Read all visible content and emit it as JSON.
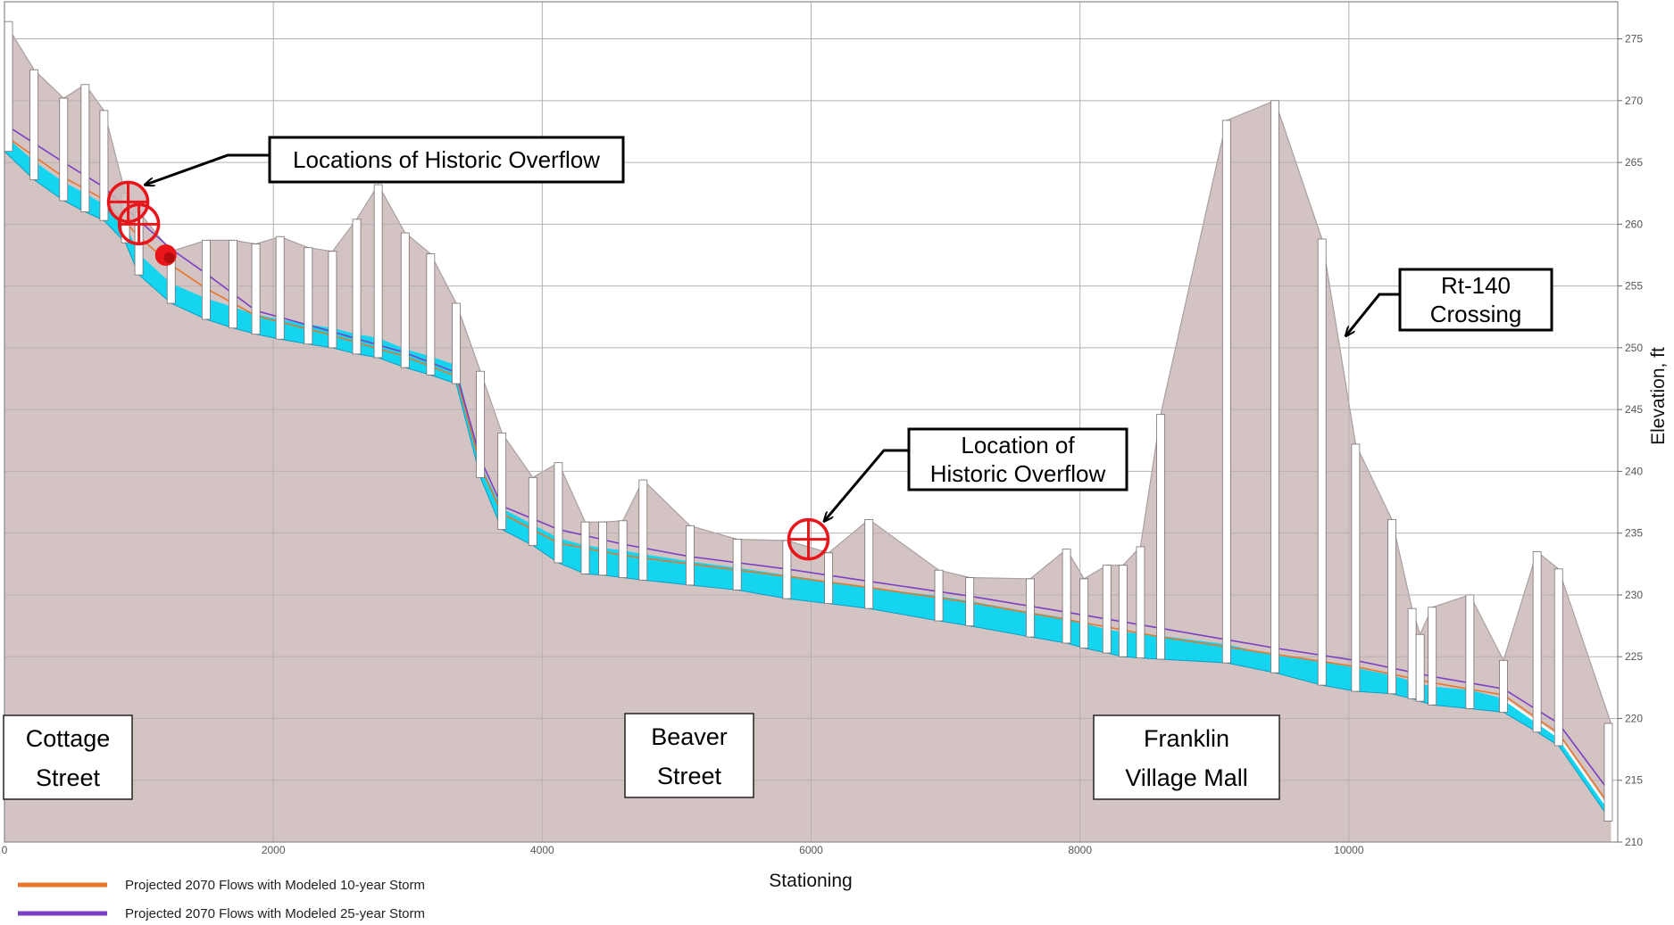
{
  "chart_data": {
    "type": "area",
    "xlabel": "Stationing",
    "ylabel": "Elevation, ft",
    "xlim": [
      0,
      12000
    ],
    "ylim": [
      210,
      278
    ],
    "xticks": [
      0,
      2000,
      4000,
      6000,
      8000,
      10000
    ],
    "yticks": [
      210,
      215,
      220,
      225,
      230,
      235,
      240,
      245,
      250,
      255,
      260,
      265,
      270,
      275
    ],
    "grid": true,
    "colors": {
      "ground": "#d4c3c3",
      "ground_edge": "#a8a0a0",
      "pipe_fill": "#14d4ef",
      "manhole": "#ffffff",
      "flow_10yr": "#e8762b",
      "flow_25yr": "#7b3fc4",
      "overflow_marker": "#e8161b"
    },
    "ground_surface": [
      [
        0,
        276.4
      ],
      [
        220,
        272.5
      ],
      [
        440,
        270.2
      ],
      [
        600,
        271.3
      ],
      [
        740,
        269.2
      ],
      [
        900,
        262.5
      ],
      [
        1000,
        261.0
      ],
      [
        1240,
        257.8
      ],
      [
        1500,
        258.7
      ],
      [
        1700,
        258.7
      ],
      [
        1870,
        258.4
      ],
      [
        2050,
        259.0
      ],
      [
        2260,
        258.1
      ],
      [
        2440,
        257.8
      ],
      [
        2620,
        260.4
      ],
      [
        2780,
        263.2
      ],
      [
        2980,
        259.3
      ],
      [
        3170,
        257.6
      ],
      [
        3360,
        253.6
      ],
      [
        3540,
        248.1
      ],
      [
        3700,
        243.1
      ],
      [
        3930,
        239.5
      ],
      [
        4120,
        240.7
      ],
      [
        4320,
        235.9
      ],
      [
        4450,
        235.9
      ],
      [
        4600,
        236.0
      ],
      [
        4750,
        239.3
      ],
      [
        5100,
        235.6
      ],
      [
        5450,
        234.5
      ],
      [
        5820,
        234.4
      ],
      [
        6130,
        233.4
      ],
      [
        6430,
        236.1
      ],
      [
        6950,
        232.0
      ],
      [
        7180,
        231.4
      ],
      [
        7630,
        231.3
      ],
      [
        7900,
        233.7
      ],
      [
        8030,
        231.3
      ],
      [
        8200,
        232.4
      ],
      [
        8320,
        232.4
      ],
      [
        8450,
        233.9
      ],
      [
        8600,
        244.6
      ],
      [
        9090,
        268.4
      ],
      [
        9450,
        270.0
      ],
      [
        9800,
        258.8
      ],
      [
        10050,
        242.2
      ],
      [
        10320,
        236.1
      ],
      [
        10470,
        228.9
      ],
      [
        10530,
        226.8
      ],
      [
        10620,
        229.0
      ],
      [
        10900,
        230.0
      ],
      [
        11150,
        224.7
      ],
      [
        11400,
        233.5
      ],
      [
        11560,
        232.1
      ],
      [
        11950,
        219.6
      ],
      [
        11950,
        210
      ]
    ],
    "pipe_invert": [
      [
        0,
        265.9
      ],
      [
        220,
        263.6
      ],
      [
        440,
        261.9
      ],
      [
        600,
        261.0
      ],
      [
        740,
        260.3
      ],
      [
        900,
        258.5
      ],
      [
        1000,
        255.9
      ],
      [
        1240,
        253.6
      ],
      [
        1500,
        252.3
      ],
      [
        1700,
        251.6
      ],
      [
        1870,
        251.1
      ],
      [
        2050,
        250.7
      ],
      [
        2260,
        250.3
      ],
      [
        2440,
        250.0
      ],
      [
        2620,
        249.5
      ],
      [
        2780,
        249.2
      ],
      [
        2980,
        248.4
      ],
      [
        3170,
        247.8
      ],
      [
        3360,
        247.1
      ],
      [
        3540,
        239.5
      ],
      [
        3700,
        235.3
      ],
      [
        3930,
        234.0
      ],
      [
        4120,
        232.6
      ],
      [
        4320,
        231.7
      ],
      [
        4450,
        231.6
      ],
      [
        4600,
        231.4
      ],
      [
        4750,
        231.2
      ],
      [
        5100,
        230.8
      ],
      [
        5450,
        230.4
      ],
      [
        5820,
        229.7
      ],
      [
        6130,
        229.3
      ],
      [
        6430,
        228.9
      ],
      [
        6950,
        227.9
      ],
      [
        7180,
        227.5
      ],
      [
        7630,
        226.6
      ],
      [
        7900,
        226.1
      ],
      [
        8030,
        225.7
      ],
      [
        8200,
        225.3
      ],
      [
        8320,
        225.0
      ],
      [
        8450,
        224.9
      ],
      [
        8600,
        224.8
      ],
      [
        9090,
        224.5
      ],
      [
        9450,
        223.7
      ],
      [
        9800,
        222.7
      ],
      [
        10050,
        222.2
      ],
      [
        10320,
        222.0
      ],
      [
        10470,
        221.6
      ],
      [
        10530,
        221.4
      ],
      [
        10620,
        221.1
      ],
      [
        10900,
        220.8
      ],
      [
        11150,
        220.5
      ],
      [
        11400,
        218.9
      ],
      [
        11560,
        217.8
      ],
      [
        11950,
        211.7
      ]
    ],
    "pipe_crown": [
      [
        0,
        267.2
      ],
      [
        220,
        265.1
      ],
      [
        440,
        263.4
      ],
      [
        600,
        262.5
      ],
      [
        740,
        261.6
      ],
      [
        900,
        260.0
      ],
      [
        1000,
        257.6
      ],
      [
        1240,
        255.2
      ],
      [
        1500,
        254.0
      ],
      [
        1700,
        253.3
      ],
      [
        1870,
        252.7
      ],
      [
        2050,
        252.3
      ],
      [
        2260,
        251.9
      ],
      [
        2440,
        251.6
      ],
      [
        2620,
        251.1
      ],
      [
        2780,
        250.8
      ],
      [
        2980,
        249.9
      ],
      [
        3170,
        249.3
      ],
      [
        3360,
        248.6
      ],
      [
        3540,
        240.6
      ],
      [
        3700,
        237.0
      ],
      [
        3930,
        235.7
      ],
      [
        4120,
        234.6
      ],
      [
        4320,
        234.0
      ],
      [
        4450,
        233.8
      ],
      [
        4600,
        233.6
      ],
      [
        4750,
        233.3
      ],
      [
        5100,
        232.7
      ],
      [
        5450,
        232.2
      ],
      [
        5820,
        231.6
      ],
      [
        6130,
        231.1
      ],
      [
        6430,
        230.6
      ],
      [
        6950,
        229.9
      ],
      [
        7180,
        229.5
      ],
      [
        7630,
        228.6
      ],
      [
        7900,
        228.1
      ],
      [
        8030,
        227.7
      ],
      [
        8200,
        227.2
      ],
      [
        8320,
        227.0
      ],
      [
        8450,
        226.9
      ],
      [
        8600,
        226.7
      ],
      [
        9090,
        226.0
      ],
      [
        9450,
        225.1
      ],
      [
        9800,
        224.6
      ],
      [
        10050,
        224.1
      ],
      [
        10320,
        223.5
      ],
      [
        10470,
        223.0
      ],
      [
        10530,
        222.8
      ],
      [
        10620,
        222.6
      ],
      [
        10900,
        222.3
      ],
      [
        11150,
        221.6
      ],
      [
        11400,
        219.7
      ],
      [
        11560,
        218.5
      ],
      [
        11950,
        212.4
      ]
    ],
    "manholes": [
      {
        "x": 30,
        "top": 276.4
      },
      {
        "x": 220,
        "top": 272.5
      },
      {
        "x": 440,
        "top": 270.2
      },
      {
        "x": 600,
        "top": 271.3
      },
      {
        "x": 740,
        "top": 269.2
      },
      {
        "x": 900,
        "top": 262.5
      },
      {
        "x": 1000,
        "top": 261.0
      },
      {
        "x": 1240,
        "top": 257.8
      },
      {
        "x": 1500,
        "top": 258.7
      },
      {
        "x": 1700,
        "top": 258.7
      },
      {
        "x": 1870,
        "top": 258.4
      },
      {
        "x": 2050,
        "top": 259.0
      },
      {
        "x": 2260,
        "top": 258.1
      },
      {
        "x": 2440,
        "top": 257.8
      },
      {
        "x": 2620,
        "top": 260.4
      },
      {
        "x": 2780,
        "top": 263.2
      },
      {
        "x": 2980,
        "top": 259.3
      },
      {
        "x": 3170,
        "top": 257.6
      },
      {
        "x": 3360,
        "top": 253.6
      },
      {
        "x": 3540,
        "top": 248.1
      },
      {
        "x": 3700,
        "top": 243.1
      },
      {
        "x": 3930,
        "top": 239.5
      },
      {
        "x": 4120,
        "top": 240.7
      },
      {
        "x": 4320,
        "top": 235.9
      },
      {
        "x": 4450,
        "top": 235.9
      },
      {
        "x": 4600,
        "top": 236.0
      },
      {
        "x": 4750,
        "top": 239.3
      },
      {
        "x": 5100,
        "top": 235.6
      },
      {
        "x": 5450,
        "top": 234.5
      },
      {
        "x": 5820,
        "top": 234.4
      },
      {
        "x": 6130,
        "top": 233.4
      },
      {
        "x": 6430,
        "top": 236.1
      },
      {
        "x": 6950,
        "top": 232.0
      },
      {
        "x": 7180,
        "top": 231.4
      },
      {
        "x": 7630,
        "top": 231.3
      },
      {
        "x": 7900,
        "top": 233.7
      },
      {
        "x": 8030,
        "top": 231.3
      },
      {
        "x": 8200,
        "top": 232.4
      },
      {
        "x": 8320,
        "top": 232.4
      },
      {
        "x": 8450,
        "top": 233.9
      },
      {
        "x": 8600,
        "top": 244.6
      },
      {
        "x": 9090,
        "top": 268.4
      },
      {
        "x": 9450,
        "top": 270.0
      },
      {
        "x": 9800,
        "top": 258.8
      },
      {
        "x": 10050,
        "top": 242.2
      },
      {
        "x": 10320,
        "top": 236.1
      },
      {
        "x": 10470,
        "top": 228.9
      },
      {
        "x": 10530,
        "top": 226.8
      },
      {
        "x": 10620,
        "top": 229.0
      },
      {
        "x": 10900,
        "top": 230.0
      },
      {
        "x": 11150,
        "top": 224.7
      },
      {
        "x": 11400,
        "top": 233.5
      },
      {
        "x": 11560,
        "top": 232.1
      },
      {
        "x": 11930,
        "top": 219.6
      }
    ],
    "series": [
      {
        "name": "Projected 2070 Flows with Modeled 10-year Storm",
        "color": "#e8762b",
        "points": [
          [
            0,
            267.2
          ],
          [
            440,
            263.8
          ],
          [
            740,
            262.0
          ],
          [
            1000,
            259.0
          ],
          [
            1240,
            256.7
          ],
          [
            1500,
            254.8
          ],
          [
            1870,
            252.6
          ],
          [
            2440,
            251.0
          ],
          [
            2980,
            249.3
          ],
          [
            3360,
            247.7
          ],
          [
            3540,
            240.4
          ],
          [
            3700,
            236.6
          ],
          [
            4120,
            234.2
          ],
          [
            4600,
            233.2
          ],
          [
            5100,
            232.5
          ],
          [
            5820,
            231.5
          ],
          [
            6430,
            230.6
          ],
          [
            7180,
            229.4
          ],
          [
            7900,
            228.0
          ],
          [
            8600,
            226.6
          ],
          [
            9450,
            225.2
          ],
          [
            10050,
            224.2
          ],
          [
            10620,
            222.9
          ],
          [
            11150,
            221.9
          ],
          [
            11560,
            218.8
          ],
          [
            11950,
            212.8
          ]
        ]
      },
      {
        "name": "Projected 2070 Flows with Modeled 25-year Storm",
        "color": "#7b3fc4",
        "points": [
          [
            0,
            268.1
          ],
          [
            440,
            265.0
          ],
          [
            740,
            263.0
          ],
          [
            1000,
            260.3
          ],
          [
            1240,
            258.0
          ],
          [
            1500,
            256.0
          ],
          [
            1870,
            253.0
          ],
          [
            2440,
            251.3
          ],
          [
            2980,
            249.6
          ],
          [
            3360,
            248.0
          ],
          [
            3540,
            241.0
          ],
          [
            3700,
            237.2
          ],
          [
            4120,
            235.3
          ],
          [
            4600,
            234.1
          ],
          [
            5100,
            233.1
          ],
          [
            5820,
            232.1
          ],
          [
            6430,
            231.1
          ],
          [
            7180,
            229.9
          ],
          [
            7900,
            228.6
          ],
          [
            8600,
            227.3
          ],
          [
            9450,
            225.7
          ],
          [
            10050,
            224.7
          ],
          [
            10620,
            223.4
          ],
          [
            11150,
            222.4
          ],
          [
            11560,
            219.6
          ],
          [
            11950,
            213.9
          ]
        ]
      }
    ],
    "overflow_locations": [
      {
        "x": 920,
        "y": 261.8,
        "style": "crosshair",
        "shaded": true
      },
      {
        "x": 1000,
        "y": 260.0,
        "style": "crosshair",
        "shaded": false
      },
      {
        "x": 1200,
        "y": 257.5,
        "style": "dot",
        "shaded": false
      },
      {
        "x": 5980,
        "y": 234.5,
        "style": "crosshair",
        "shaded": false
      }
    ],
    "callouts": [
      {
        "lines": [
          "Locations of Historic Overflow"
        ],
        "target_x": 1050,
        "target_y": 263.2
      },
      {
        "lines": [
          "Location of",
          "Historic Overflow"
        ],
        "target_x": 6100,
        "target_y": 236.0
      },
      {
        "lines": [
          "Rt-140",
          "Crossing"
        ],
        "target_x": 9980,
        "target_y": 251.0
      }
    ],
    "street_labels": [
      {
        "lines": [
          "Cottage",
          "Street"
        ]
      },
      {
        "lines": [
          "Beaver",
          "Street"
        ]
      },
      {
        "lines": [
          "Franklin",
          "Village Mall"
        ]
      }
    ]
  }
}
